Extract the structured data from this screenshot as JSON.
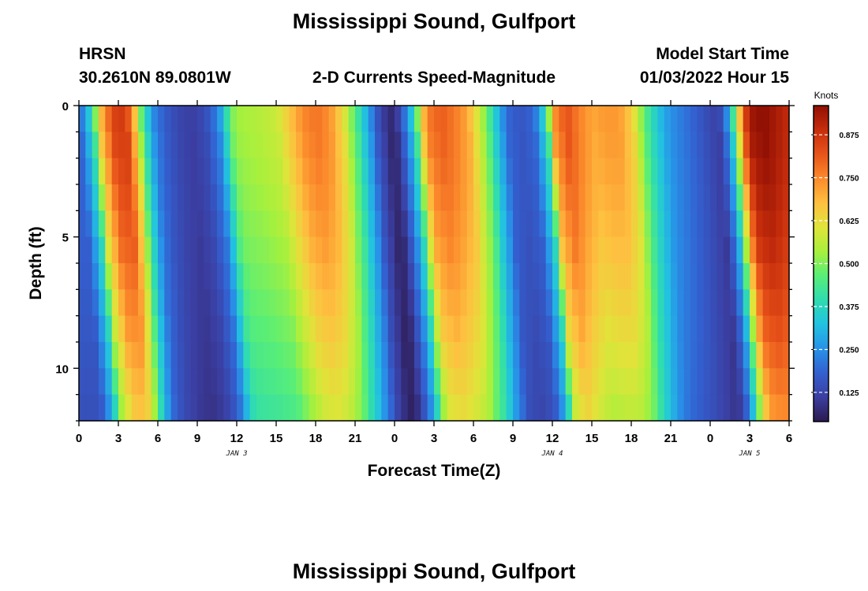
{
  "header": {
    "title": "Mississippi Sound, Gulfport",
    "station": "HRSN",
    "coords": "30.2610N  89.0801W",
    "subtitle": "2-D Currents Speed-Magnitude",
    "model_label": "Model Start Time",
    "model_time": "01/03/2022 Hour 15"
  },
  "footer": {
    "title": "Mississippi Sound, Gulfport"
  },
  "colors": {
    "palette": [
      "#2c1a4e",
      "#3b3ea1",
      "#3360d0",
      "#2892e8",
      "#22c2e0",
      "#2fdcb0",
      "#58ee77",
      "#a8f03c",
      "#e0e43a",
      "#fec040",
      "#fb8a2c",
      "#e8541a",
      "#c62d0c",
      "#921004"
    ],
    "axis": "#000000"
  },
  "chart_data": {
    "type": "heatmap",
    "title": "2-D Currents Speed-Magnitude",
    "xlabel": "Forecast Time(Z)",
    "ylabel": "Depth (ft)",
    "x_hours_from_jan3_00z": [
      0,
      54
    ],
    "ylim": [
      0,
      12
    ],
    "x_tick_labels": [
      "0",
      "3",
      "6",
      "9",
      "12",
      "15",
      "18",
      "21",
      "0",
      "3",
      "6",
      "9",
      "12",
      "15",
      "18",
      "21",
      "0",
      "3",
      "6"
    ],
    "y_ticks": [
      0,
      5,
      10
    ],
    "y_tick_labels": [
      "0",
      "5",
      "10"
    ],
    "date_labels": [
      {
        "label": "JAN 3",
        "hour": 12
      },
      {
        "label": "JAN 4",
        "hour": 36
      },
      {
        "label": "JAN 5",
        "hour": 51
      }
    ],
    "colorbar": {
      "unit": "Knots",
      "range": [
        0.04,
        0.96
      ],
      "ticks": [
        0.125,
        0.25,
        0.375,
        0.5,
        0.625,
        0.75,
        0.875
      ],
      "tick_labels": [
        "0.125",
        "0.250",
        "0.375",
        "0.500",
        "0.625",
        "0.750",
        "0.875"
      ]
    },
    "grid_cols": 108,
    "grid_rows": 12,
    "surface_speed_profile": [
      [
        0,
        0.18
      ],
      [
        0.5,
        0.28
      ],
      [
        1,
        0.4
      ],
      [
        1.5,
        0.65
      ],
      [
        2.5,
        0.84
      ],
      [
        3.5,
        0.86
      ],
      [
        4.2,
        0.66
      ],
      [
        4.7,
        0.46
      ],
      [
        5.2,
        0.32
      ],
      [
        5.7,
        0.22
      ],
      [
        6.5,
        0.16
      ],
      [
        7.5,
        0.12
      ],
      [
        8.5,
        0.1
      ],
      [
        9.5,
        0.13
      ],
      [
        10.5,
        0.22
      ],
      [
        11,
        0.34
      ],
      [
        11.5,
        0.48
      ],
      [
        12,
        0.52
      ],
      [
        13.5,
        0.54
      ],
      [
        15,
        0.57
      ],
      [
        16,
        0.66
      ],
      [
        17,
        0.74
      ],
      [
        18,
        0.77
      ],
      [
        19,
        0.73
      ],
      [
        20,
        0.62
      ],
      [
        20.5,
        0.52
      ],
      [
        21,
        0.44
      ],
      [
        21.5,
        0.34
      ],
      [
        22,
        0.26
      ],
      [
        22.5,
        0.16
      ],
      [
        23.5,
        0.06
      ],
      [
        24,
        0.07
      ],
      [
        24.5,
        0.16
      ],
      [
        25,
        0.26
      ],
      [
        25.5,
        0.4
      ],
      [
        26,
        0.64
      ],
      [
        26.5,
        0.76
      ],
      [
        27.5,
        0.8
      ],
      [
        28.5,
        0.76
      ],
      [
        29.5,
        0.7
      ],
      [
        30,
        0.62
      ],
      [
        30.5,
        0.55
      ],
      [
        31,
        0.46
      ],
      [
        31.5,
        0.35
      ],
      [
        32,
        0.27
      ],
      [
        32.5,
        0.18
      ],
      [
        33.5,
        0.15
      ],
      [
        34.5,
        0.18
      ],
      [
        35,
        0.28
      ],
      [
        35.5,
        0.4
      ],
      [
        36,
        0.72
      ],
      [
        37,
        0.82
      ],
      [
        38,
        0.75
      ],
      [
        39,
        0.7
      ],
      [
        40,
        0.72
      ],
      [
        41,
        0.72
      ],
      [
        42,
        0.64
      ],
      [
        42.5,
        0.54
      ],
      [
        43,
        0.45
      ],
      [
        43.5,
        0.38
      ],
      [
        44,
        0.32
      ],
      [
        44.5,
        0.27
      ],
      [
        45,
        0.24
      ],
      [
        46,
        0.2
      ],
      [
        47,
        0.16
      ],
      [
        48,
        0.12
      ],
      [
        48.5,
        0.1
      ],
      [
        49,
        0.18
      ],
      [
        49.5,
        0.32
      ],
      [
        50,
        0.58
      ],
      [
        50.5,
        0.82
      ],
      [
        51,
        0.93
      ],
      [
        52,
        0.96
      ],
      [
        53,
        0.92
      ],
      [
        54,
        0.88
      ]
    ]
  }
}
